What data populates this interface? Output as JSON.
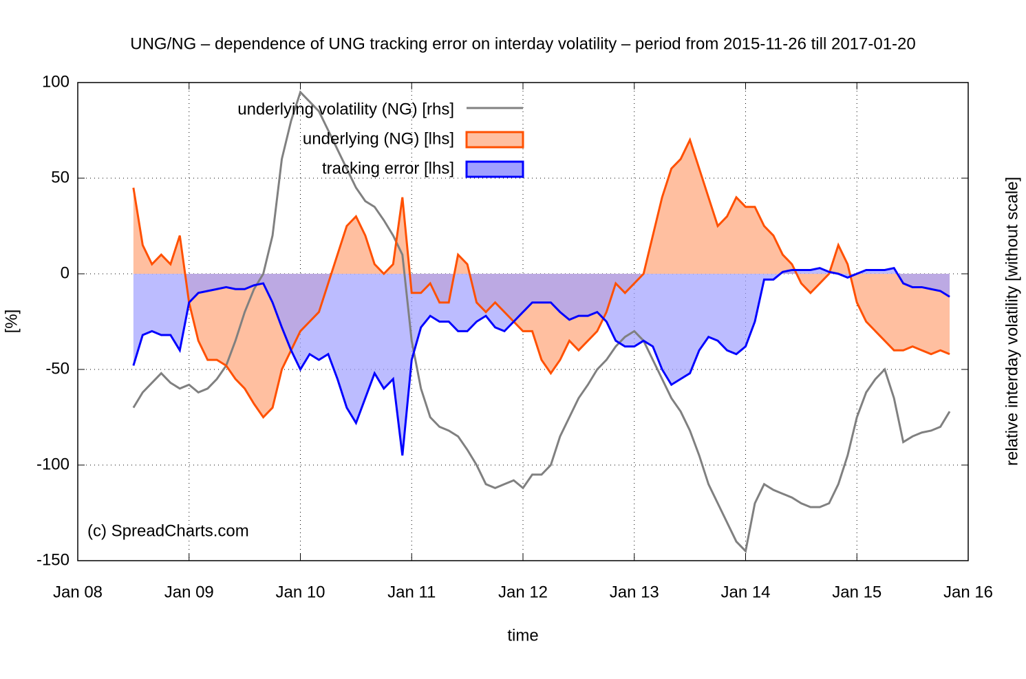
{
  "chart_data": {
    "type": "area",
    "title": "UNG/NG  – dependence of UNG tracking error on interday volatility –  period from 2015-11-26 till 2017-01-20",
    "xlabel": "time",
    "ylabel": "[%]",
    "y2label": "relative interday volatility [without scale]",
    "annotation": "(c) SpreadCharts.com",
    "legend": "top-left",
    "grid": true,
    "xlim": [
      "2008-01",
      "2016-01"
    ],
    "xticks": [
      {
        "value": "2008-01",
        "label": "Jan 08"
      },
      {
        "value": "2009-01",
        "label": "Jan 09"
      },
      {
        "value": "2010-01",
        "label": "Jan 10"
      },
      {
        "value": "2011-01",
        "label": "Jan 11"
      },
      {
        "value": "2012-01",
        "label": "Jan 12"
      },
      {
        "value": "2013-01",
        "label": "Jan 13"
      },
      {
        "value": "2014-01",
        "label": "Jan 14"
      },
      {
        "value": "2015-01",
        "label": "Jan 15"
      },
      {
        "value": "2016-01",
        "label": "Jan 16"
      }
    ],
    "ylim": [
      -150,
      100
    ],
    "yticks": [
      -150,
      -100,
      -50,
      0,
      50,
      100
    ],
    "y2lim": [
      -150,
      100
    ],
    "x": [
      "2008-07",
      "2008-08",
      "2008-09",
      "2008-10",
      "2008-11",
      "2008-12",
      "2009-01",
      "2009-02",
      "2009-03",
      "2009-04",
      "2009-05",
      "2009-06",
      "2009-07",
      "2009-08",
      "2009-09",
      "2009-10",
      "2009-11",
      "2009-12",
      "2010-01",
      "2010-02",
      "2010-03",
      "2010-04",
      "2010-05",
      "2010-06",
      "2010-07",
      "2010-08",
      "2010-09",
      "2010-10",
      "2010-11",
      "2010-12",
      "2011-01",
      "2011-02",
      "2011-03",
      "2011-04",
      "2011-05",
      "2011-06",
      "2011-07",
      "2011-08",
      "2011-09",
      "2011-10",
      "2011-11",
      "2011-12",
      "2012-01",
      "2012-02",
      "2012-03",
      "2012-04",
      "2012-05",
      "2012-06",
      "2012-07",
      "2012-08",
      "2012-09",
      "2012-10",
      "2012-11",
      "2012-12",
      "2013-01",
      "2013-02",
      "2013-03",
      "2013-04",
      "2013-05",
      "2013-06",
      "2013-07",
      "2013-08",
      "2013-09",
      "2013-10",
      "2013-11",
      "2013-12",
      "2014-01",
      "2014-02",
      "2014-03",
      "2014-04",
      "2014-05",
      "2014-06",
      "2014-07",
      "2014-08",
      "2014-09",
      "2014-10",
      "2014-11",
      "2014-12",
      "2015-01",
      "2015-02",
      "2015-03",
      "2015-04",
      "2015-05",
      "2015-06",
      "2015-07",
      "2015-08",
      "2015-09",
      "2015-10",
      "2015-11"
    ],
    "series": [
      {
        "name": "underlying volatility (NG) [rhs]",
        "color": "#808080",
        "style": "line",
        "axis": "y2",
        "values": [
          -70,
          -62,
          -57,
          -52,
          -57,
          -60,
          -58,
          -62,
          -60,
          -55,
          -48,
          -35,
          -20,
          -8,
          0,
          20,
          60,
          80,
          95,
          90,
          85,
          75,
          65,
          55,
          45,
          38,
          35,
          28,
          20,
          10,
          -35,
          -60,
          -75,
          -80,
          -82,
          -85,
          -92,
          -100,
          -110,
          -112,
          -110,
          -108,
          -112,
          -105,
          -105,
          -100,
          -85,
          -75,
          -65,
          -58,
          -50,
          -45,
          -38,
          -33,
          -30,
          -35,
          -45,
          -55,
          -65,
          -72,
          -82,
          -95,
          -110,
          -120,
          -130,
          -140,
          -145,
          -120,
          -110,
          -113,
          -115,
          -117,
          -120,
          -122,
          -122,
          -120,
          -110,
          -95,
          -75,
          -62,
          -55,
          -50,
          -65,
          -88,
          -85,
          -83,
          -82,
          -80,
          -72
        ]
      },
      {
        "name": "underlying (NG) [lhs]",
        "color": "#ff5000",
        "fill": "#ffbfa0",
        "style": "area",
        "values": [
          45,
          15,
          5,
          10,
          5,
          20,
          -15,
          -35,
          -45,
          -45,
          -48,
          -55,
          -60,
          -68,
          -75,
          -70,
          -50,
          -40,
          -30,
          -25,
          -20,
          -5,
          10,
          25,
          30,
          20,
          5,
          0,
          5,
          40,
          -10,
          -10,
          -5,
          -15,
          -15,
          10,
          5,
          -15,
          -20,
          -15,
          -20,
          -25,
          -30,
          -30,
          -45,
          -52,
          -45,
          -35,
          -40,
          -35,
          -30,
          -20,
          -5,
          -10,
          -5,
          0,
          20,
          40,
          55,
          60,
          70,
          55,
          40,
          25,
          30,
          40,
          35,
          35,
          25,
          20,
          10,
          5,
          -5,
          -10,
          -5,
          0,
          15,
          5,
          -15,
          -25,
          -30,
          -35,
          -40,
          -40,
          -38,
          -40,
          -42,
          -40,
          -42
        ]
      },
      {
        "name": "tracking error [lhs]",
        "color": "#0000ff",
        "fill": "#a0a0ff",
        "style": "area",
        "values": [
          -48,
          -32,
          -30,
          -32,
          -32,
          -40,
          -15,
          -10,
          -9,
          -8,
          -7,
          -8,
          -8,
          -6,
          -5,
          -15,
          -28,
          -40,
          -50,
          -42,
          -45,
          -42,
          -55,
          -70,
          -78,
          -65,
          -52,
          -60,
          -55,
          -95,
          -45,
          -28,
          -22,
          -25,
          -25,
          -30,
          -30,
          -25,
          -22,
          -28,
          -30,
          -25,
          -20,
          -15,
          -15,
          -15,
          -20,
          -24,
          -22,
          -22,
          -20,
          -25,
          -35,
          -38,
          -38,
          -35,
          -38,
          -50,
          -58,
          -55,
          -52,
          -40,
          -33,
          -35,
          -40,
          -42,
          -38,
          -25,
          -3,
          -3,
          1,
          2,
          2,
          2,
          3,
          1,
          0,
          -2,
          0,
          2,
          2,
          2,
          3,
          -5,
          -7,
          -7,
          -8,
          -9,
          -12
        ]
      }
    ]
  }
}
